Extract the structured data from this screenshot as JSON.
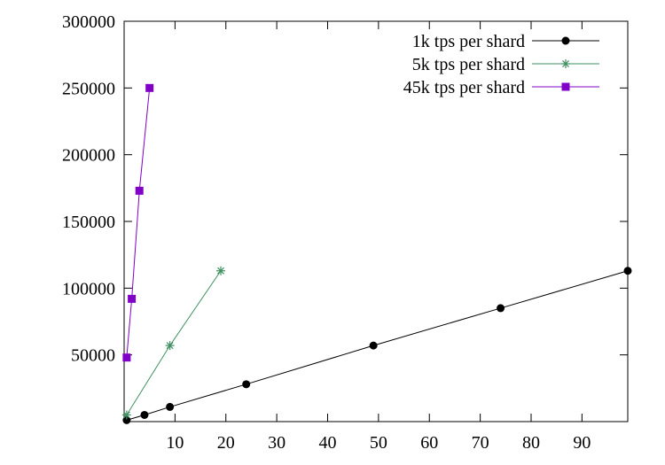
{
  "chart_data": {
    "type": "line",
    "title": "",
    "xlabel": "",
    "ylabel": "",
    "xlim": [
      0,
      99
    ],
    "ylim": [
      0,
      300000
    ],
    "x_ticks": [
      10,
      20,
      30,
      40,
      50,
      60,
      70,
      80,
      90
    ],
    "y_ticks": [
      50000,
      100000,
      150000,
      200000,
      250000,
      300000
    ],
    "x_tick_labels": [
      "10",
      "20",
      "30",
      "40",
      "50",
      "60",
      "70",
      "80",
      "90"
    ],
    "y_tick_labels": [
      "50000",
      "100000",
      "150000",
      "200000",
      "250000",
      "300000"
    ],
    "grid": false,
    "legend_position": "top-right",
    "series": [
      {
        "name": "1k tps per shard",
        "color": "#000000",
        "marker": "circle",
        "points": [
          [
            0.5,
            1100
          ],
          [
            4,
            5000
          ],
          [
            9,
            11000
          ],
          [
            24,
            28000
          ],
          [
            49,
            57000
          ],
          [
            74,
            85000
          ],
          [
            99,
            113000
          ]
        ]
      },
      {
        "name": "5k tps per shard",
        "color": "#3f8f5f",
        "marker": "asterisk",
        "points": [
          [
            0.5,
            5000
          ],
          [
            9,
            57000
          ],
          [
            19,
            113000
          ]
        ]
      },
      {
        "name": "45k tps per shard",
        "color": "#8000c8",
        "marker": "square",
        "points": [
          [
            0.5,
            48000
          ],
          [
            1.5,
            92000
          ],
          [
            3,
            173000
          ],
          [
            5,
            250000
          ]
        ]
      }
    ]
  }
}
